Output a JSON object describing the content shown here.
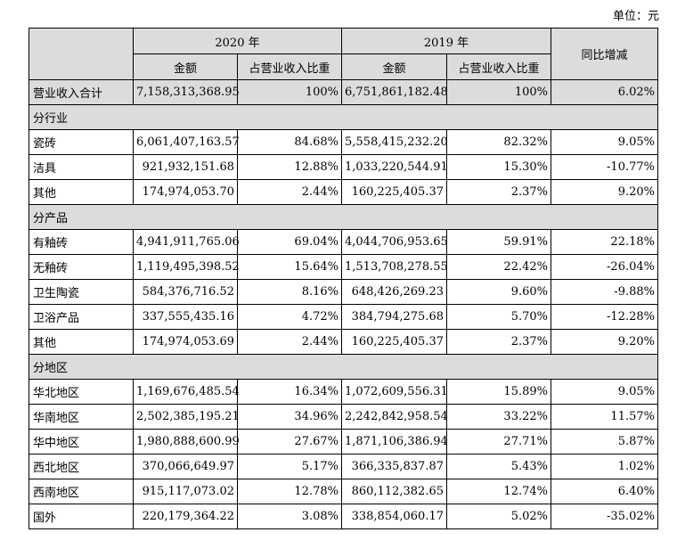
{
  "unit_label": "单位：元",
  "header": {
    "year_2020": "2020 年",
    "year_2019": "2019 年",
    "amount": "金额",
    "share": "占营业收入比重",
    "yoy": "同比增减"
  },
  "total": {
    "label": "营业收入合计",
    "amt2020": "7,158,313,368.95",
    "pct2020": "100%",
    "amt2019": "6,751,861,182.48",
    "pct2019": "100%",
    "yoy": "6.02%"
  },
  "sections": [
    {
      "title": "分行业",
      "rows": [
        {
          "label": "瓷砖",
          "amt2020": "6,061,407,163.57",
          "pct2020": "84.68%",
          "amt2019": "5,558,415,232.20",
          "pct2019": "82.32%",
          "yoy": "9.05%"
        },
        {
          "label": "洁具",
          "amt2020": "921,932,151.68",
          "pct2020": "12.88%",
          "amt2019": "1,033,220,544.91",
          "pct2019": "15.30%",
          "yoy": "-10.77%"
        },
        {
          "label": "其他",
          "amt2020": "174,974,053.70",
          "pct2020": "2.44%",
          "amt2019": "160,225,405.37",
          "pct2019": "2.37%",
          "yoy": "9.20%"
        }
      ]
    },
    {
      "title": "分产品",
      "rows": [
        {
          "label": "有釉砖",
          "amt2020": "4,941,911,765.06",
          "pct2020": "69.04%",
          "amt2019": "4,044,706,953.65",
          "pct2019": "59.91%",
          "yoy": "22.18%"
        },
        {
          "label": "无釉砖",
          "amt2020": "1,119,495,398.52",
          "pct2020": "15.64%",
          "amt2019": "1,513,708,278.55",
          "pct2019": "22.42%",
          "yoy": "-26.04%"
        },
        {
          "label": "卫生陶瓷",
          "amt2020": "584,376,716.52",
          "pct2020": "8.16%",
          "amt2019": "648,426,269.23",
          "pct2019": "9.60%",
          "yoy": "-9.88%"
        },
        {
          "label": "卫浴产品",
          "amt2020": "337,555,435.16",
          "pct2020": "4.72%",
          "amt2019": "384,794,275.68",
          "pct2019": "5.70%",
          "yoy": "-12.28%"
        },
        {
          "label": "其他",
          "amt2020": "174,974,053.69",
          "pct2020": "2.44%",
          "amt2019": "160,225,405.37",
          "pct2019": "2.37%",
          "yoy": "9.20%"
        }
      ]
    },
    {
      "title": "分地区",
      "rows": [
        {
          "label": "华北地区",
          "amt2020": "1,169,676,485.54",
          "pct2020": "16.34%",
          "amt2019": "1,072,609,556.31",
          "pct2019": "15.89%",
          "yoy": "9.05%"
        },
        {
          "label": "华南地区",
          "amt2020": "2,502,385,195.21",
          "pct2020": "34.96%",
          "amt2019": "2,242,842,958.54",
          "pct2019": "33.22%",
          "yoy": "11.57%"
        },
        {
          "label": "华中地区",
          "amt2020": "1,980,888,600.99",
          "pct2020": "27.67%",
          "amt2019": "1,871,106,386.94",
          "pct2019": "27.71%",
          "yoy": "5.87%"
        },
        {
          "label": "西北地区",
          "amt2020": "370,066,649.97",
          "pct2020": "5.17%",
          "amt2019": "366,335,837.87",
          "pct2019": "5.43%",
          "yoy": "1.02%"
        },
        {
          "label": "西南地区",
          "amt2020": "915,117,073.02",
          "pct2020": "12.78%",
          "amt2019": "860,112,382.65",
          "pct2019": "12.74%",
          "yoy": "6.40%"
        },
        {
          "label": "国外",
          "amt2020": "220,179,364.22",
          "pct2020": "3.08%",
          "amt2019": "338,854,060.17",
          "pct2019": "5.02%",
          "yoy": "-35.02%"
        }
      ]
    }
  ]
}
